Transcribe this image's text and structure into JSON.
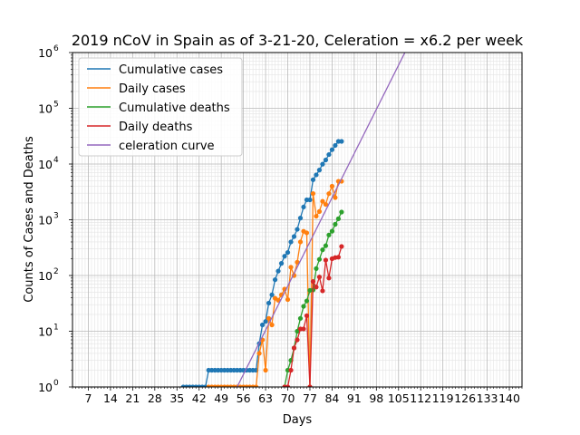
{
  "chart_data": {
    "type": "line",
    "title": "2019 nCoV in Spain as of 3-21-20, Celeration = x6.2 per week",
    "xlabel": "Days",
    "ylabel": "Counts of Cases and Deaths",
    "xlim": [
      2,
      144
    ],
    "ylim": [
      1,
      1000000
    ],
    "yscale": "log",
    "x_ticks": [
      "7",
      "14",
      "21",
      "28",
      "35",
      "42",
      "49",
      "56",
      "63",
      "70",
      "77",
      "84",
      "91",
      "98",
      "105",
      "112",
      "119",
      "126",
      "133",
      "140"
    ],
    "y_ticks": [
      {
        "base": "10",
        "exp": "0"
      },
      {
        "base": "10",
        "exp": "1"
      },
      {
        "base": "10",
        "exp": "2"
      },
      {
        "base": "10",
        "exp": "3"
      },
      {
        "base": "10",
        "exp": "4"
      },
      {
        "base": "10",
        "exp": "5"
      },
      {
        "base": "10",
        "exp": "6"
      }
    ],
    "grid": "on (major and minor)",
    "legend_position": "top-left",
    "series": [
      {
        "name": "Cumulative cases",
        "color": "#1f77b4",
        "markers": true,
        "x": [
          37,
          38,
          39,
          40,
          41,
          42,
          43,
          44,
          45,
          46,
          47,
          48,
          49,
          50,
          51,
          52,
          53,
          54,
          55,
          56,
          57,
          58,
          59,
          60,
          61,
          62,
          63,
          64,
          65,
          66,
          67,
          68,
          69,
          70,
          71,
          72,
          73,
          74,
          75,
          76,
          77,
          78,
          79,
          80,
          81,
          82,
          83,
          84,
          85,
          86,
          87
        ],
        "y": [
          1,
          1,
          1,
          1,
          1,
          1,
          1,
          1,
          2,
          2,
          2,
          2,
          2,
          2,
          2,
          2,
          2,
          2,
          2,
          2,
          2,
          2,
          2,
          2,
          6,
          13,
          15,
          32,
          45,
          84,
          120,
          165,
          222,
          259,
          400,
          500,
          673,
          1073,
          1695,
          2277,
          2277,
          5232,
          6391,
          7798,
          9942,
          11826,
          14769,
          18077,
          21571,
          25496,
          25496
        ]
      },
      {
        "name": "Daily cases",
        "color": "#ff7f0e",
        "markers": true,
        "x": [
          45,
          46,
          47,
          48,
          49,
          50,
          51,
          52,
          53,
          54,
          55,
          56,
          57,
          58,
          59,
          60,
          61,
          62,
          63,
          64,
          65,
          66,
          67,
          68,
          69,
          70,
          71,
          72,
          73,
          74,
          75,
          76,
          77,
          78,
          79,
          80,
          81,
          82,
          83,
          84,
          85,
          86,
          87
        ],
        "y": [
          1,
          1,
          1,
          1,
          1,
          1,
          1,
          1,
          1,
          1,
          1,
          1,
          1,
          1,
          1,
          1,
          4,
          7,
          2,
          17,
          13,
          39,
          36,
          45,
          57,
          37,
          141,
          100,
          173,
          400,
          622,
          582,
          1,
          2955,
          1159,
          1407,
          2144,
          1884,
          2943,
          4000,
          2500,
          4900,
          4900
        ]
      },
      {
        "name": "Cumulative deaths",
        "color": "#2ca02c",
        "markers": true,
        "x": [
          69,
          70,
          71,
          72,
          73,
          74,
          75,
          76,
          77,
          78,
          79,
          80,
          81,
          82,
          83,
          84,
          85,
          86,
          87
        ],
        "y": [
          1,
          2,
          3,
          5,
          10,
          17,
          28,
          35,
          54,
          55,
          133,
          195,
          289,
          342,
          533,
          623,
          830,
          1043,
          1375
        ]
      },
      {
        "name": "Daily deaths",
        "color": "#d62728",
        "markers": true,
        "x": [
          69,
          70,
          71,
          72,
          73,
          74,
          75,
          76,
          77,
          78,
          79,
          80,
          81,
          82,
          83,
          84,
          85,
          86,
          87
        ],
        "y": [
          1,
          1,
          2,
          5,
          7,
          11,
          11,
          19,
          1,
          78,
          62,
          94,
          53,
          189,
          90,
          200,
          210,
          213,
          332
        ]
      },
      {
        "name": "celeration curve",
        "color": "#9467bd",
        "markers": false,
        "x": [
          54,
          107
        ],
        "y": [
          1,
          1000000
        ]
      }
    ]
  }
}
